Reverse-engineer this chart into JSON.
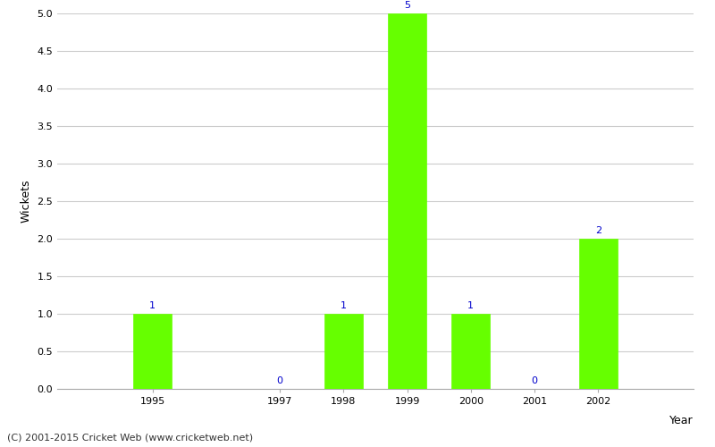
{
  "years": [
    1995,
    1997,
    1998,
    1999,
    2000,
    2001,
    2002
  ],
  "wickets": [
    1,
    0,
    1,
    5,
    1,
    0,
    2
  ],
  "bar_color": "#66ff00",
  "bar_edge_color": "#66ff00",
  "xlabel": "Year",
  "ylabel": "Wickets",
  "ylim": [
    0.0,
    5.0
  ],
  "yticks": [
    0.0,
    0.5,
    1.0,
    1.5,
    2.0,
    2.5,
    3.0,
    3.5,
    4.0,
    4.5,
    5.0
  ],
  "label_color": "#0000cc",
  "label_fontsize": 8,
  "axis_label_fontsize": 9,
  "tick_fontsize": 8,
  "grid_color": "#cccccc",
  "background_color": "#ffffff",
  "footer_text": "(C) 2001-2015 Cricket Web (www.cricketweb.net)",
  "footer_fontsize": 8,
  "footer_color": "#333333",
  "bar_width": 0.6,
  "xlim": [
    1993.5,
    2003.5
  ]
}
